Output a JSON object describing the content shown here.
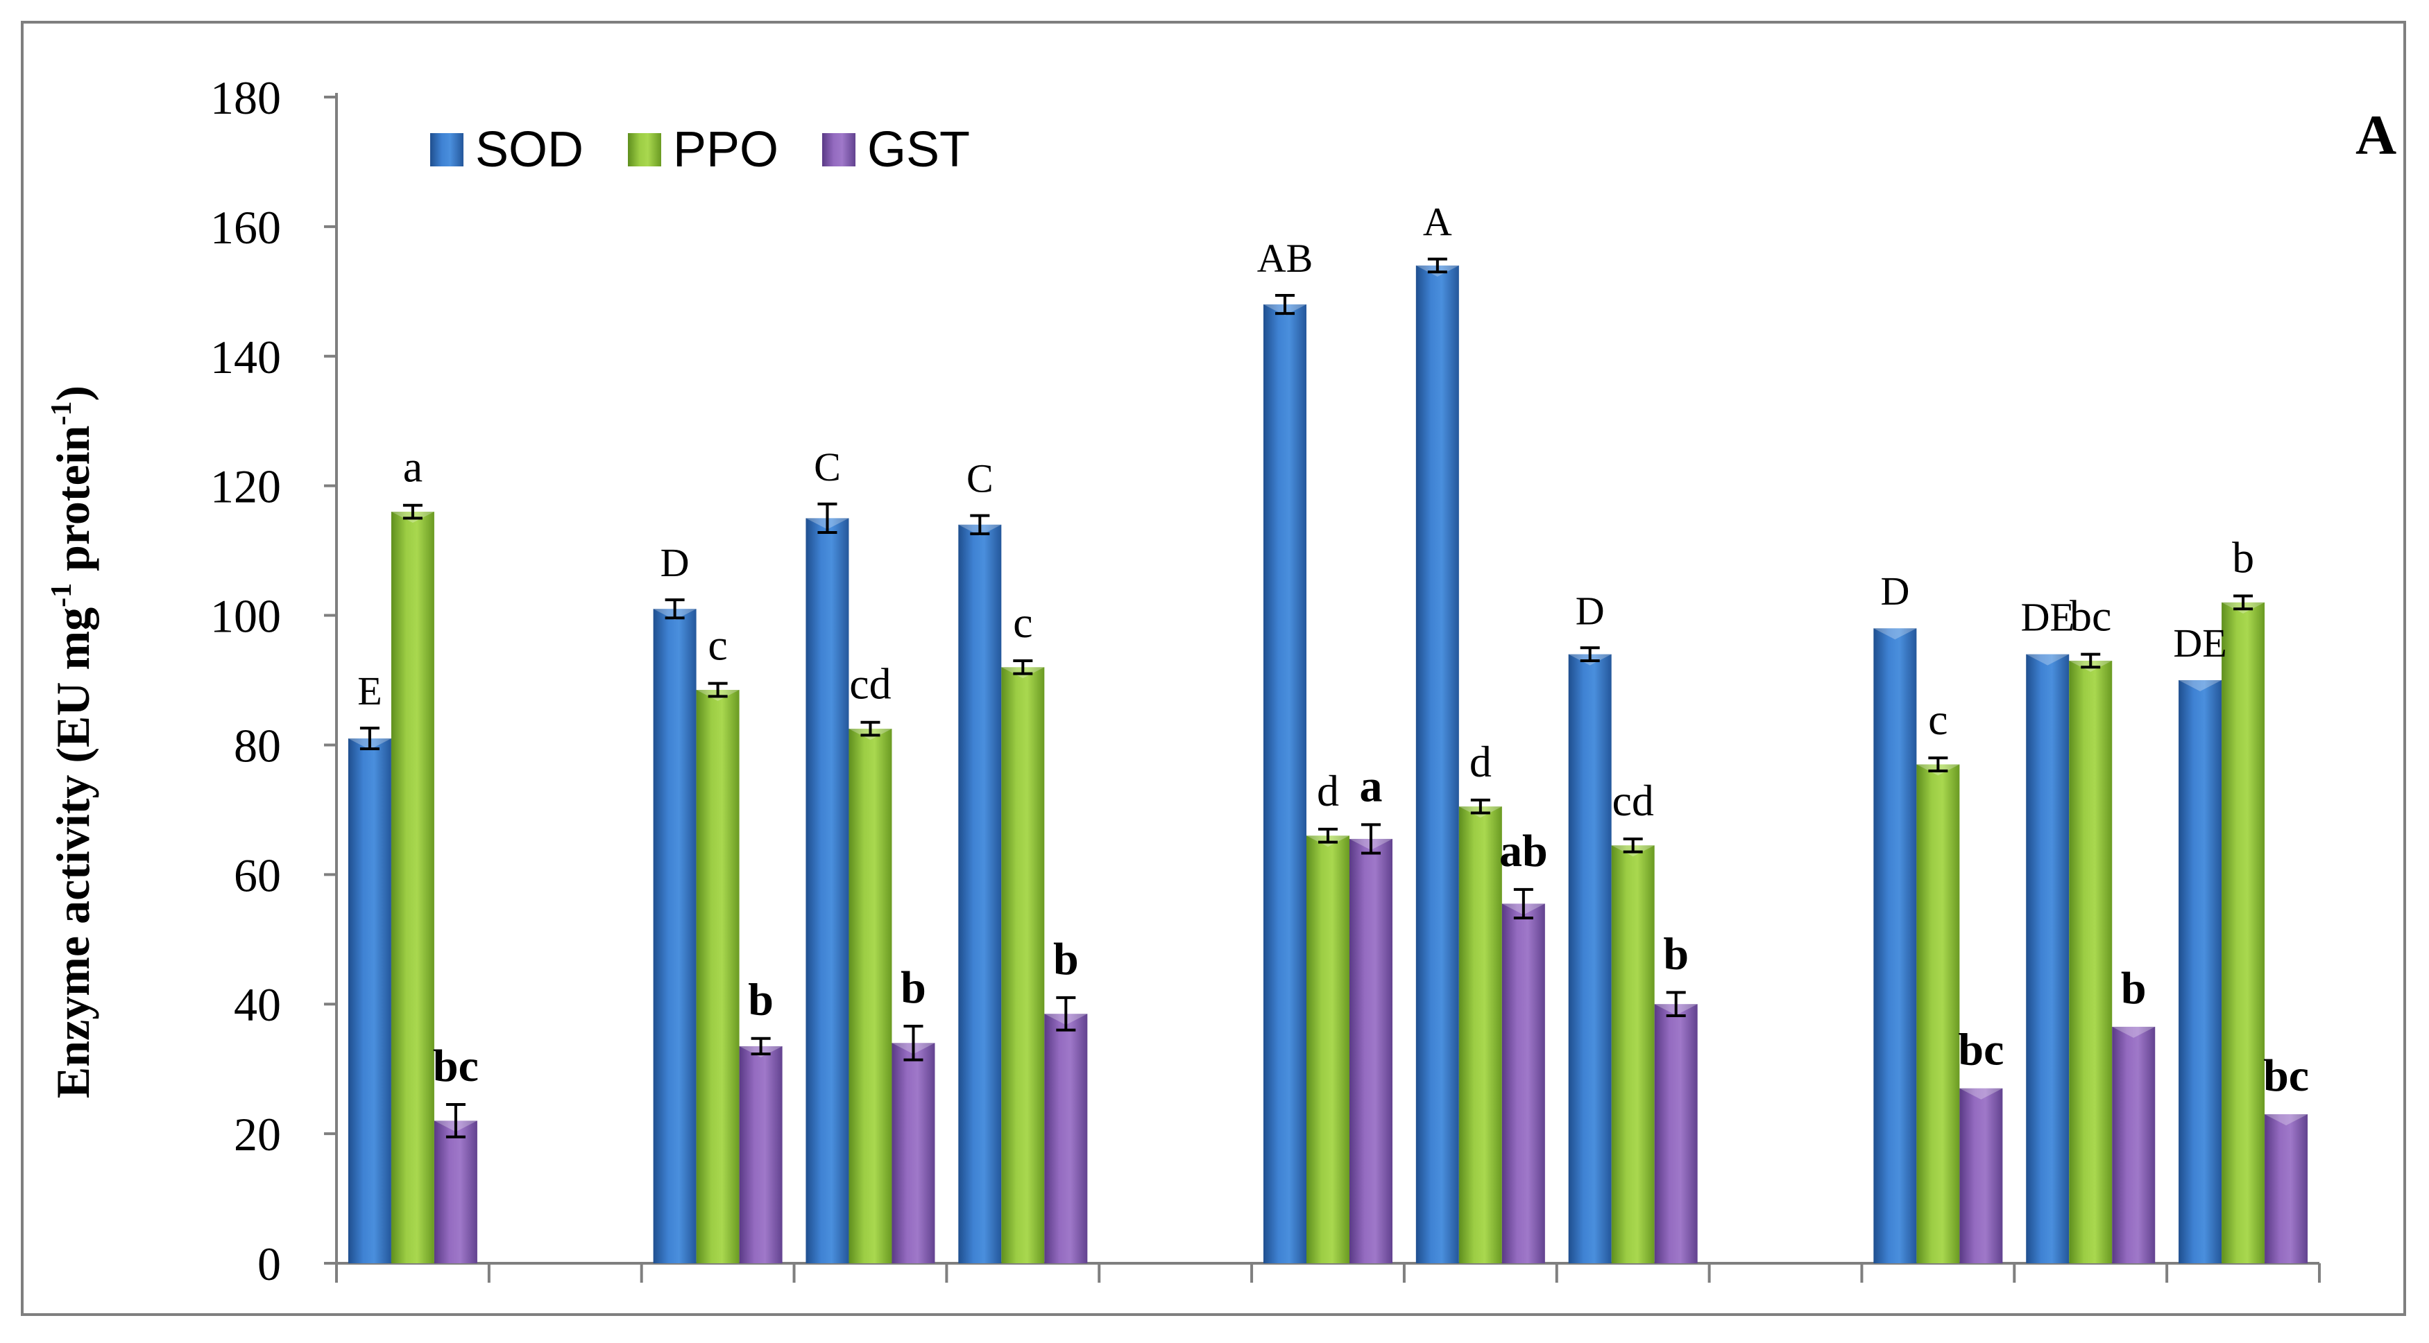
{
  "chart_data": {
    "type": "bar",
    "panel_label": "A",
    "ylabel": {
      "main": "Enzyme activity (EU mg",
      "sup1": "-1",
      "mid": " protein",
      "sup2": "-1",
      "end": ")"
    },
    "ylim": [
      0,
      180
    ],
    "yticks": [
      0,
      20,
      40,
      60,
      80,
      100,
      120,
      140,
      160,
      180
    ],
    "group_count": 13,
    "series": [
      {
        "name": "SOD",
        "color": "#3a78c9",
        "values": [
          81,
          null,
          101,
          115,
          114,
          null,
          148,
          154,
          94,
          null,
          98,
          94,
          90
        ],
        "errors": [
          1.6,
          null,
          1.4,
          2.2,
          1.4,
          null,
          1.4,
          1.0,
          1.0,
          null,
          0,
          0,
          0
        ],
        "labels": [
          "E",
          "",
          "D",
          "C",
          "C",
          "",
          "AB",
          "A",
          "D",
          "",
          "D",
          "DE",
          "DE"
        ]
      },
      {
        "name": "PPO",
        "color": "#92c43c",
        "values": [
          116,
          null,
          88.5,
          82.5,
          92,
          null,
          66,
          70.5,
          64.5,
          null,
          77,
          93,
          102
        ],
        "errors": [
          1.0,
          null,
          1.0,
          1.0,
          1.0,
          null,
          1.0,
          1.0,
          1.0,
          null,
          1.0,
          1.0,
          1.0
        ],
        "labels": [
          "a",
          "",
          "c",
          "cd",
          "c",
          "",
          "d",
          "d",
          "cd",
          "",
          "c",
          "bc",
          "b"
        ]
      },
      {
        "name": "GST",
        "color": "#8a62b5",
        "values": [
          22,
          null,
          33.5,
          34,
          38.5,
          null,
          65.5,
          55.5,
          40,
          null,
          27,
          36.5,
          23
        ],
        "errors": [
          2.5,
          null,
          1.2,
          2.6,
          2.5,
          null,
          2.2,
          2.2,
          1.8,
          null,
          0,
          0,
          0
        ],
        "labels": [
          "bc",
          "",
          "b",
          "b",
          "b",
          "",
          "a",
          "ab",
          "b",
          "",
          "bc",
          "b",
          "bc"
        ]
      }
    ],
    "legend": {
      "position": "top-left",
      "entries": [
        "SOD",
        "PPO",
        "GST"
      ]
    },
    "grid": false
  }
}
